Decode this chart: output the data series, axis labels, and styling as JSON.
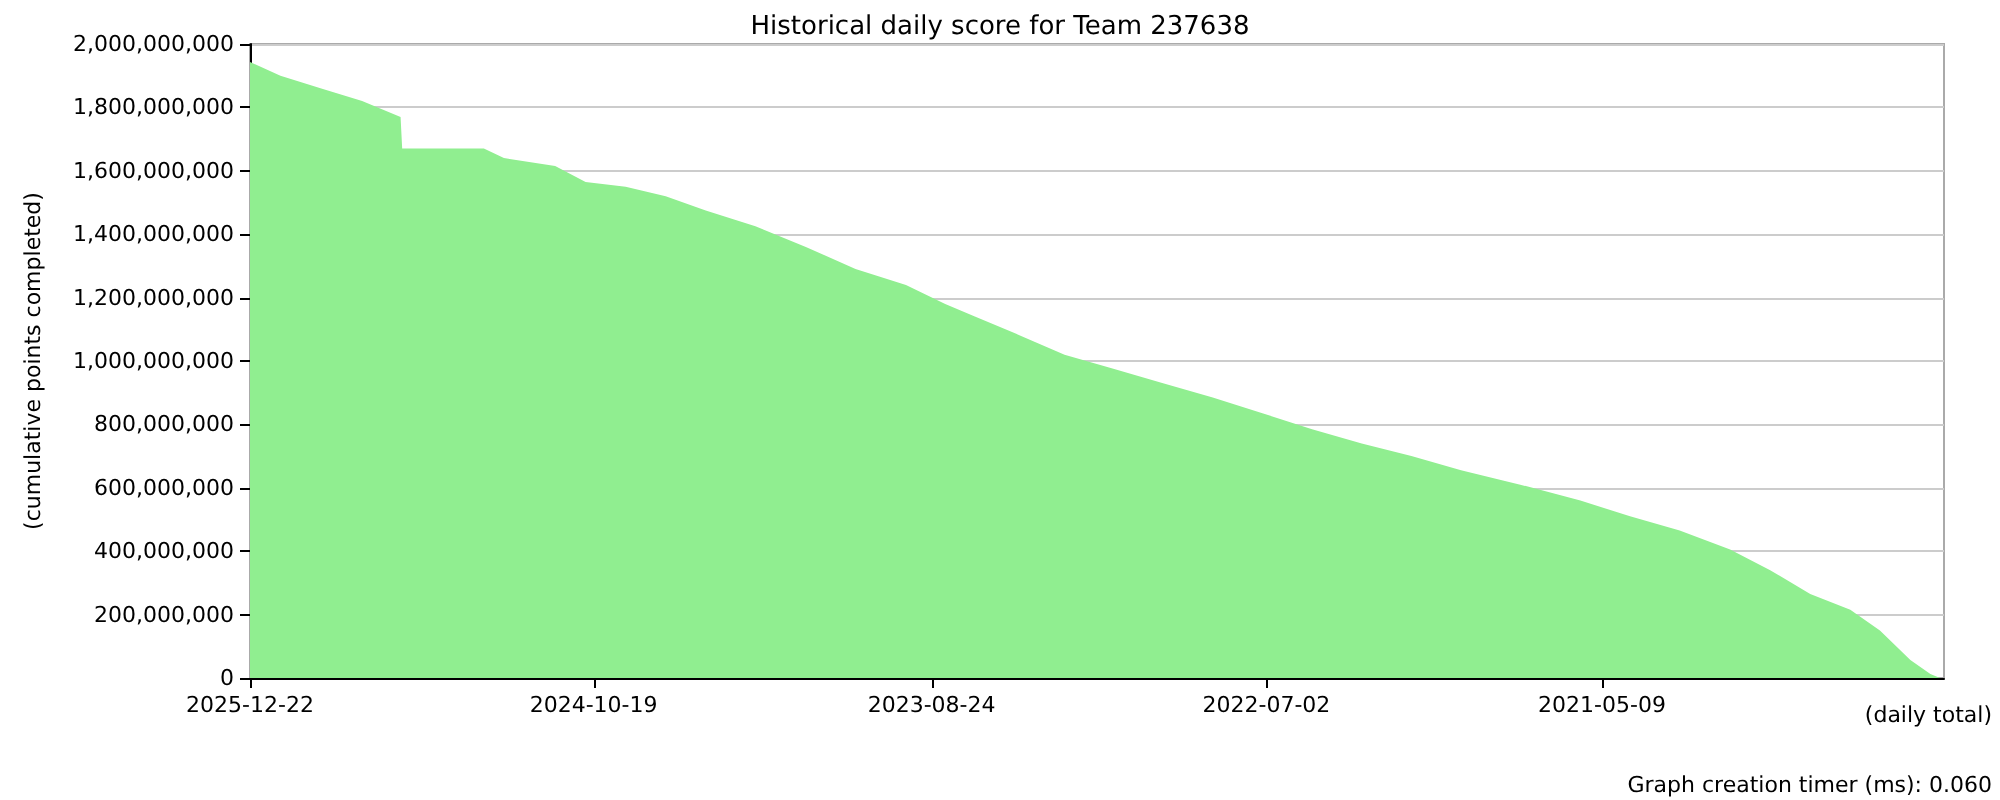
{
  "chart_data": {
    "type": "area",
    "title": "Historical daily score for Team 237638",
    "xlabel": "(daily total)",
    "ylabel": "(cumulative points completed)",
    "annotations": [
      "Graph creation timer (ms): 0.060"
    ],
    "x": [
      "2025-12-22",
      "2025-11-14",
      "2025-09-24",
      "2025-08-04",
      "2025-06-17",
      "2025-06-15",
      "2025-03-05",
      "2025-02-08",
      "2024-12-06",
      "2024-10-29",
      "2024-09-09",
      "2024-07-21",
      "2024-06-01",
      "2024-03-31",
      "2024-01-28",
      "2023-11-27",
      "2023-09-25",
      "2023-08-07",
      "2023-07-01",
      "2023-05-05",
      "2023-03-11",
      "2023-01-08",
      "2022-11-08",
      "2022-09-07",
      "2022-07-07",
      "2022-05-06",
      "2022-03-05",
      "2022-01-02",
      "2021-11-01",
      "2021-08-19",
      "2021-06-05",
      "2021-04-04",
      "2021-02-01",
      "2020-11-30",
      "2020-10-11",
      "2020-08-22",
      "2020-07-03",
      "2020-05-27",
      "2020-04-19",
      "2020-03-25",
      "2020-03-13"
    ],
    "values": [
      1943000000,
      1900000000,
      1860000000,
      1820000000,
      1770000000,
      1670000000,
      1670000000,
      1640000000,
      1615000000,
      1565000000,
      1550000000,
      1520000000,
      1475000000,
      1425000000,
      1360000000,
      1290000000,
      1240000000,
      1180000000,
      1140000000,
      1080000000,
      1020000000,
      975000000,
      930000000,
      885000000,
      835000000,
      785000000,
      740000000,
      700000000,
      655000000,
      610000000,
      560000000,
      510000000,
      465000000,
      405000000,
      340000000,
      265000000,
      215000000,
      150000000,
      57000000,
      13000000,
      0
    ],
    "color": "#90ee90",
    "xlim": [
      "2025-12-22",
      "2020-03-08"
    ],
    "xticks": [
      "2025-12-22",
      "2024-10-19",
      "2023-08-24",
      "2022-07-02",
      "2021-05-09"
    ],
    "ylim": [
      0,
      2000000000
    ],
    "yticks": [
      0,
      {
        "value": 200000000,
        "label": "200,000,000"
      },
      {
        "value": 400000000,
        "label": "400,000,000"
      },
      {
        "value": 600000000,
        "label": "600,000,000"
      },
      {
        "value": 800000000,
        "label": "800,000,000"
      },
      {
        "value": 1000000000,
        "label": "1,000,000,000"
      },
      {
        "value": 1200000000,
        "label": "1,200,000,000"
      },
      {
        "value": 1400000000,
        "label": "1,400,000,000"
      },
      {
        "value": 1600000000,
        "label": "1,600,000,000"
      },
      {
        "value": 1800000000,
        "label": "1,800,000,000"
      },
      {
        "value": 2000000000,
        "label": "2,000,000,000"
      }
    ],
    "grid": "y",
    "marker": "none"
  }
}
